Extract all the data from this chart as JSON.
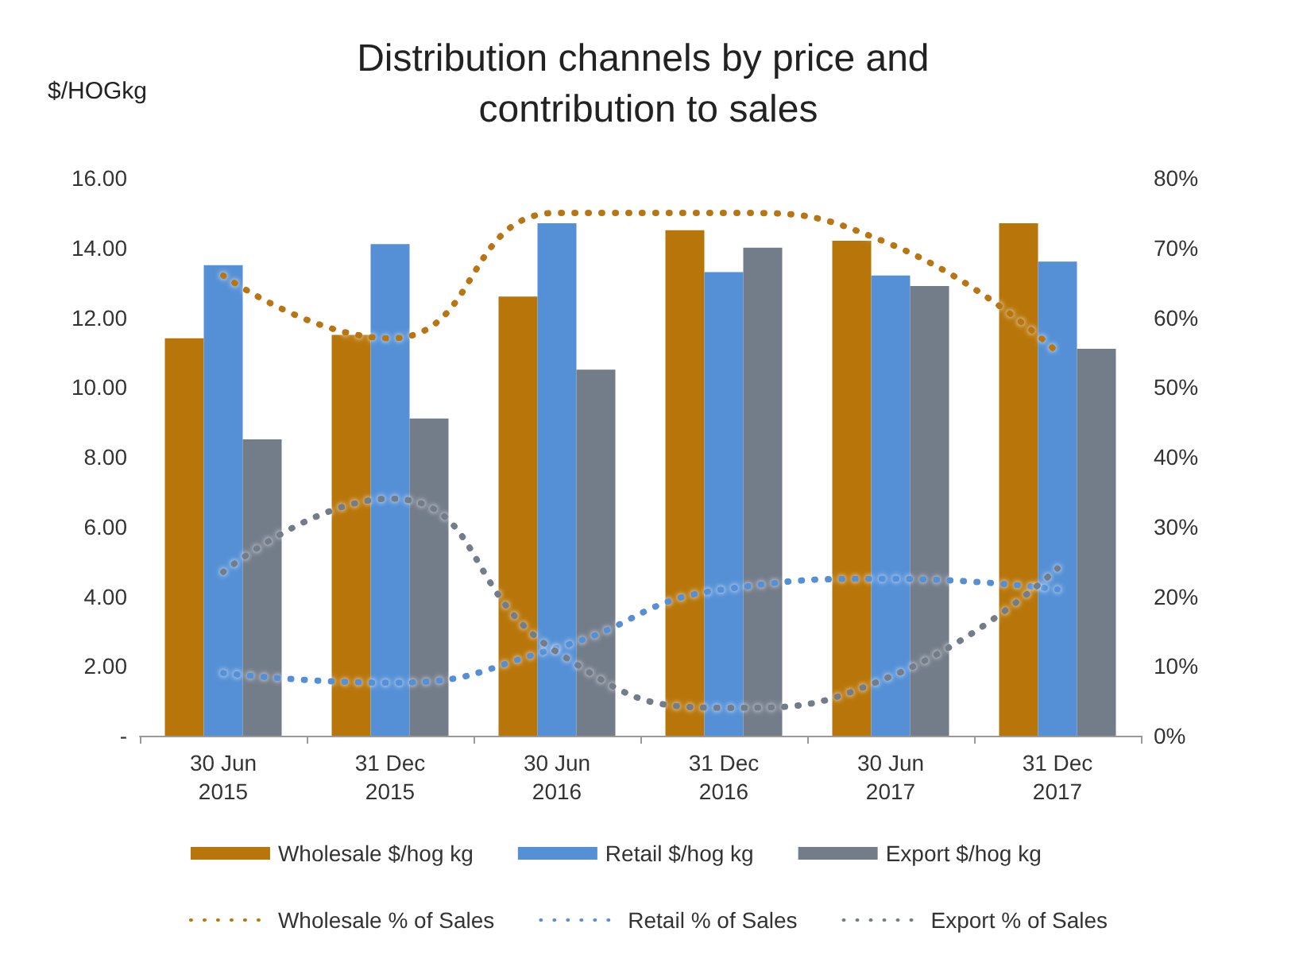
{
  "chart_data": {
    "type": "bar",
    "title": "Distribution channels by price and contribution to sales",
    "ylabel": "$/HOGkg",
    "categories": [
      "30 Jun\n2015",
      "31 Dec\n2015",
      "30 Jun\n2016",
      "31 Dec\n2016",
      "30 Jun\n2017",
      "31 Dec\n2017"
    ],
    "series": [
      {
        "name": "Wholesale $/hog kg",
        "color": "#b8760a",
        "values": [
          11.4,
          11.5,
          12.6,
          14.5,
          14.2,
          14.7
        ]
      },
      {
        "name": "Retail $/hog kg",
        "color": "#5590d6",
        "values": [
          13.5,
          14.1,
          14.7,
          13.3,
          13.2,
          13.6
        ]
      },
      {
        "name": "Export $/hog kg",
        "color": "#737c89",
        "values": [
          8.5,
          9.1,
          10.5,
          14.0,
          12.9,
          11.1
        ]
      },
      {
        "name": "Wholesale % of Sales",
        "type": "line",
        "axis": "y2",
        "line_style": "dotted",
        "color": "#b8760a",
        "values": [
          66,
          57,
          75,
          75,
          70.5,
          55
        ]
      },
      {
        "name": "Retail % of Sales",
        "type": "line",
        "axis": "y2",
        "line_style": "dotted",
        "color": "#5590d6",
        "values": [
          9,
          7.6,
          12.6,
          21,
          22.5,
          21
        ]
      },
      {
        "name": "Export % of Sales",
        "type": "line",
        "axis": "y2",
        "line_style": "dotted",
        "color": "#737c89",
        "values": [
          23.5,
          34,
          12,
          4,
          8.5,
          24
        ]
      }
    ],
    "ylim": [
      0,
      16
    ],
    "yticks": [
      {
        "value": 0,
        "label": "-"
      },
      {
        "value": 2,
        "label": "2.00"
      },
      {
        "value": 4,
        "label": "4.00"
      },
      {
        "value": 6,
        "label": "6.00"
      },
      {
        "value": 8,
        "label": "8.00"
      },
      {
        "value": 10,
        "label": "10.00"
      },
      {
        "value": 12,
        "label": "12.00"
      },
      {
        "value": 14,
        "label": "14.00"
      },
      {
        "value": 16,
        "label": "16.00"
      }
    ],
    "y2lim": [
      0,
      80
    ],
    "y2ticks": [
      {
        "value": 0,
        "label": "0%"
      },
      {
        "value": 10,
        "label": "10%"
      },
      {
        "value": 20,
        "label": "20%"
      },
      {
        "value": 30,
        "label": "30%"
      },
      {
        "value": 40,
        "label": "40%"
      },
      {
        "value": 50,
        "label": "50%"
      },
      {
        "value": 60,
        "label": "60%"
      },
      {
        "value": 70,
        "label": "70%"
      },
      {
        "value": 80,
        "label": "80%"
      }
    ],
    "grid": false,
    "legend": "bottom",
    "marker": "none"
  }
}
